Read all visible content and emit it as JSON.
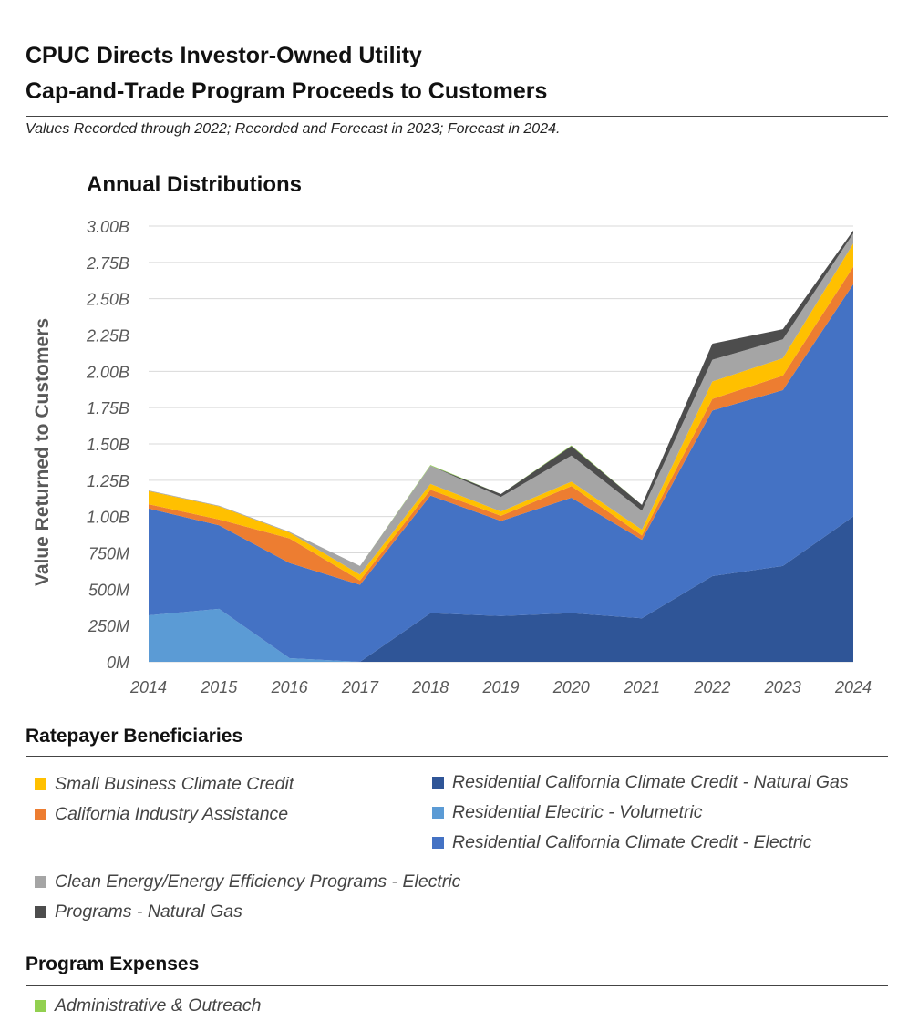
{
  "header": {
    "title_line1": "CPUC Directs Investor-Owned Utility",
    "title_line2": "Cap-and-Trade Program Proceeds to Customers",
    "subtitle": "Values Recorded through 2022; Recorded and Forecast in 2023; Forecast in 2024."
  },
  "chart_data": {
    "type": "area",
    "stacked": true,
    "title": "Annual Distributions",
    "xlabel": "",
    "ylabel": "Value Returned to Customers",
    "x": [
      "2014",
      "2015",
      "2016",
      "2017",
      "2018",
      "2019",
      "2020",
      "2021",
      "2022",
      "2023",
      "2024"
    ],
    "ylim": [
      0,
      3000
    ],
    "yticks": [
      0,
      250,
      500,
      750,
      1000,
      1250,
      1500,
      1750,
      2000,
      2250,
      2500,
      2750,
      3000
    ],
    "ytick_labels": [
      "0M",
      "250M",
      "500M",
      "750M",
      "1.00B",
      "1.25B",
      "1.50B",
      "1.75B",
      "2.00B",
      "2.25B",
      "2.50B",
      "2.75B",
      "3.00B"
    ],
    "grid": true,
    "series": [
      {
        "name": "Residential California Climate Credit - Natural Gas",
        "color": "#2f5597",
        "values": [
          0,
          0,
          0,
          0,
          335,
          315,
          335,
          300,
          590,
          660,
          1000
        ]
      },
      {
        "name": "Residential Electric - Volumetric",
        "color": "#5b9bd5",
        "values": [
          320,
          365,
          25,
          0,
          0,
          0,
          0,
          0,
          0,
          0,
          0
        ]
      },
      {
        "name": "Residential California Climate Credit - Electric",
        "color": "#4472c4",
        "values": [
          735,
          575,
          655,
          530,
          810,
          655,
          795,
          540,
          1140,
          1210,
          1600
        ]
      },
      {
        "name": "California Industry Assistance",
        "color": "#ed7d31",
        "values": [
          30,
          40,
          170,
          30,
          40,
          35,
          80,
          30,
          80,
          100,
          120
        ]
      },
      {
        "name": "Small Business Climate Credit",
        "color": "#ffc000",
        "values": [
          90,
          90,
          40,
          40,
          40,
          30,
          30,
          40,
          120,
          120,
          160
        ]
      },
      {
        "name": "Clean Energy/Energy Efficiency Programs - Electric",
        "color": "#a5a5a5",
        "values": [
          5,
          5,
          5,
          60,
          125,
          100,
          180,
          130,
          150,
          130,
          70
        ]
      },
      {
        "name": "Programs  - Natural Gas",
        "color": "#4d4d4d",
        "values": [
          0,
          0,
          0,
          0,
          0,
          20,
          65,
          40,
          110,
          70,
          20
        ]
      },
      {
        "name": "Administrative & Outreach",
        "color": "#92d050",
        "values": [
          0,
          0,
          0,
          0,
          5,
          0,
          5,
          0,
          0,
          0,
          0
        ]
      }
    ]
  },
  "legend": {
    "ratepayer_heading": "Ratepayer Beneficiaries",
    "expenses_heading": "Program Expenses",
    "items": [
      {
        "label": "Small Business Climate Credit",
        "color": "#ffc000"
      },
      {
        "label": "California Industry Assistance",
        "color": "#ed7d31"
      },
      {
        "label": "Residential California Climate Credit - Natural Gas",
        "color": "#2f5597"
      },
      {
        "label": "Residential Electric - Volumetric",
        "color": "#5b9bd5"
      },
      {
        "label": "Residential California Climate Credit - Electric",
        "color": "#4472c4"
      },
      {
        "label": "Clean Energy/Energy Efficiency Programs - Electric",
        "color": "#a5a5a5"
      },
      {
        "label": "Programs  - Natural Gas",
        "color": "#4d4d4d"
      },
      {
        "label": "Administrative & Outreach",
        "color": "#92d050"
      }
    ]
  }
}
